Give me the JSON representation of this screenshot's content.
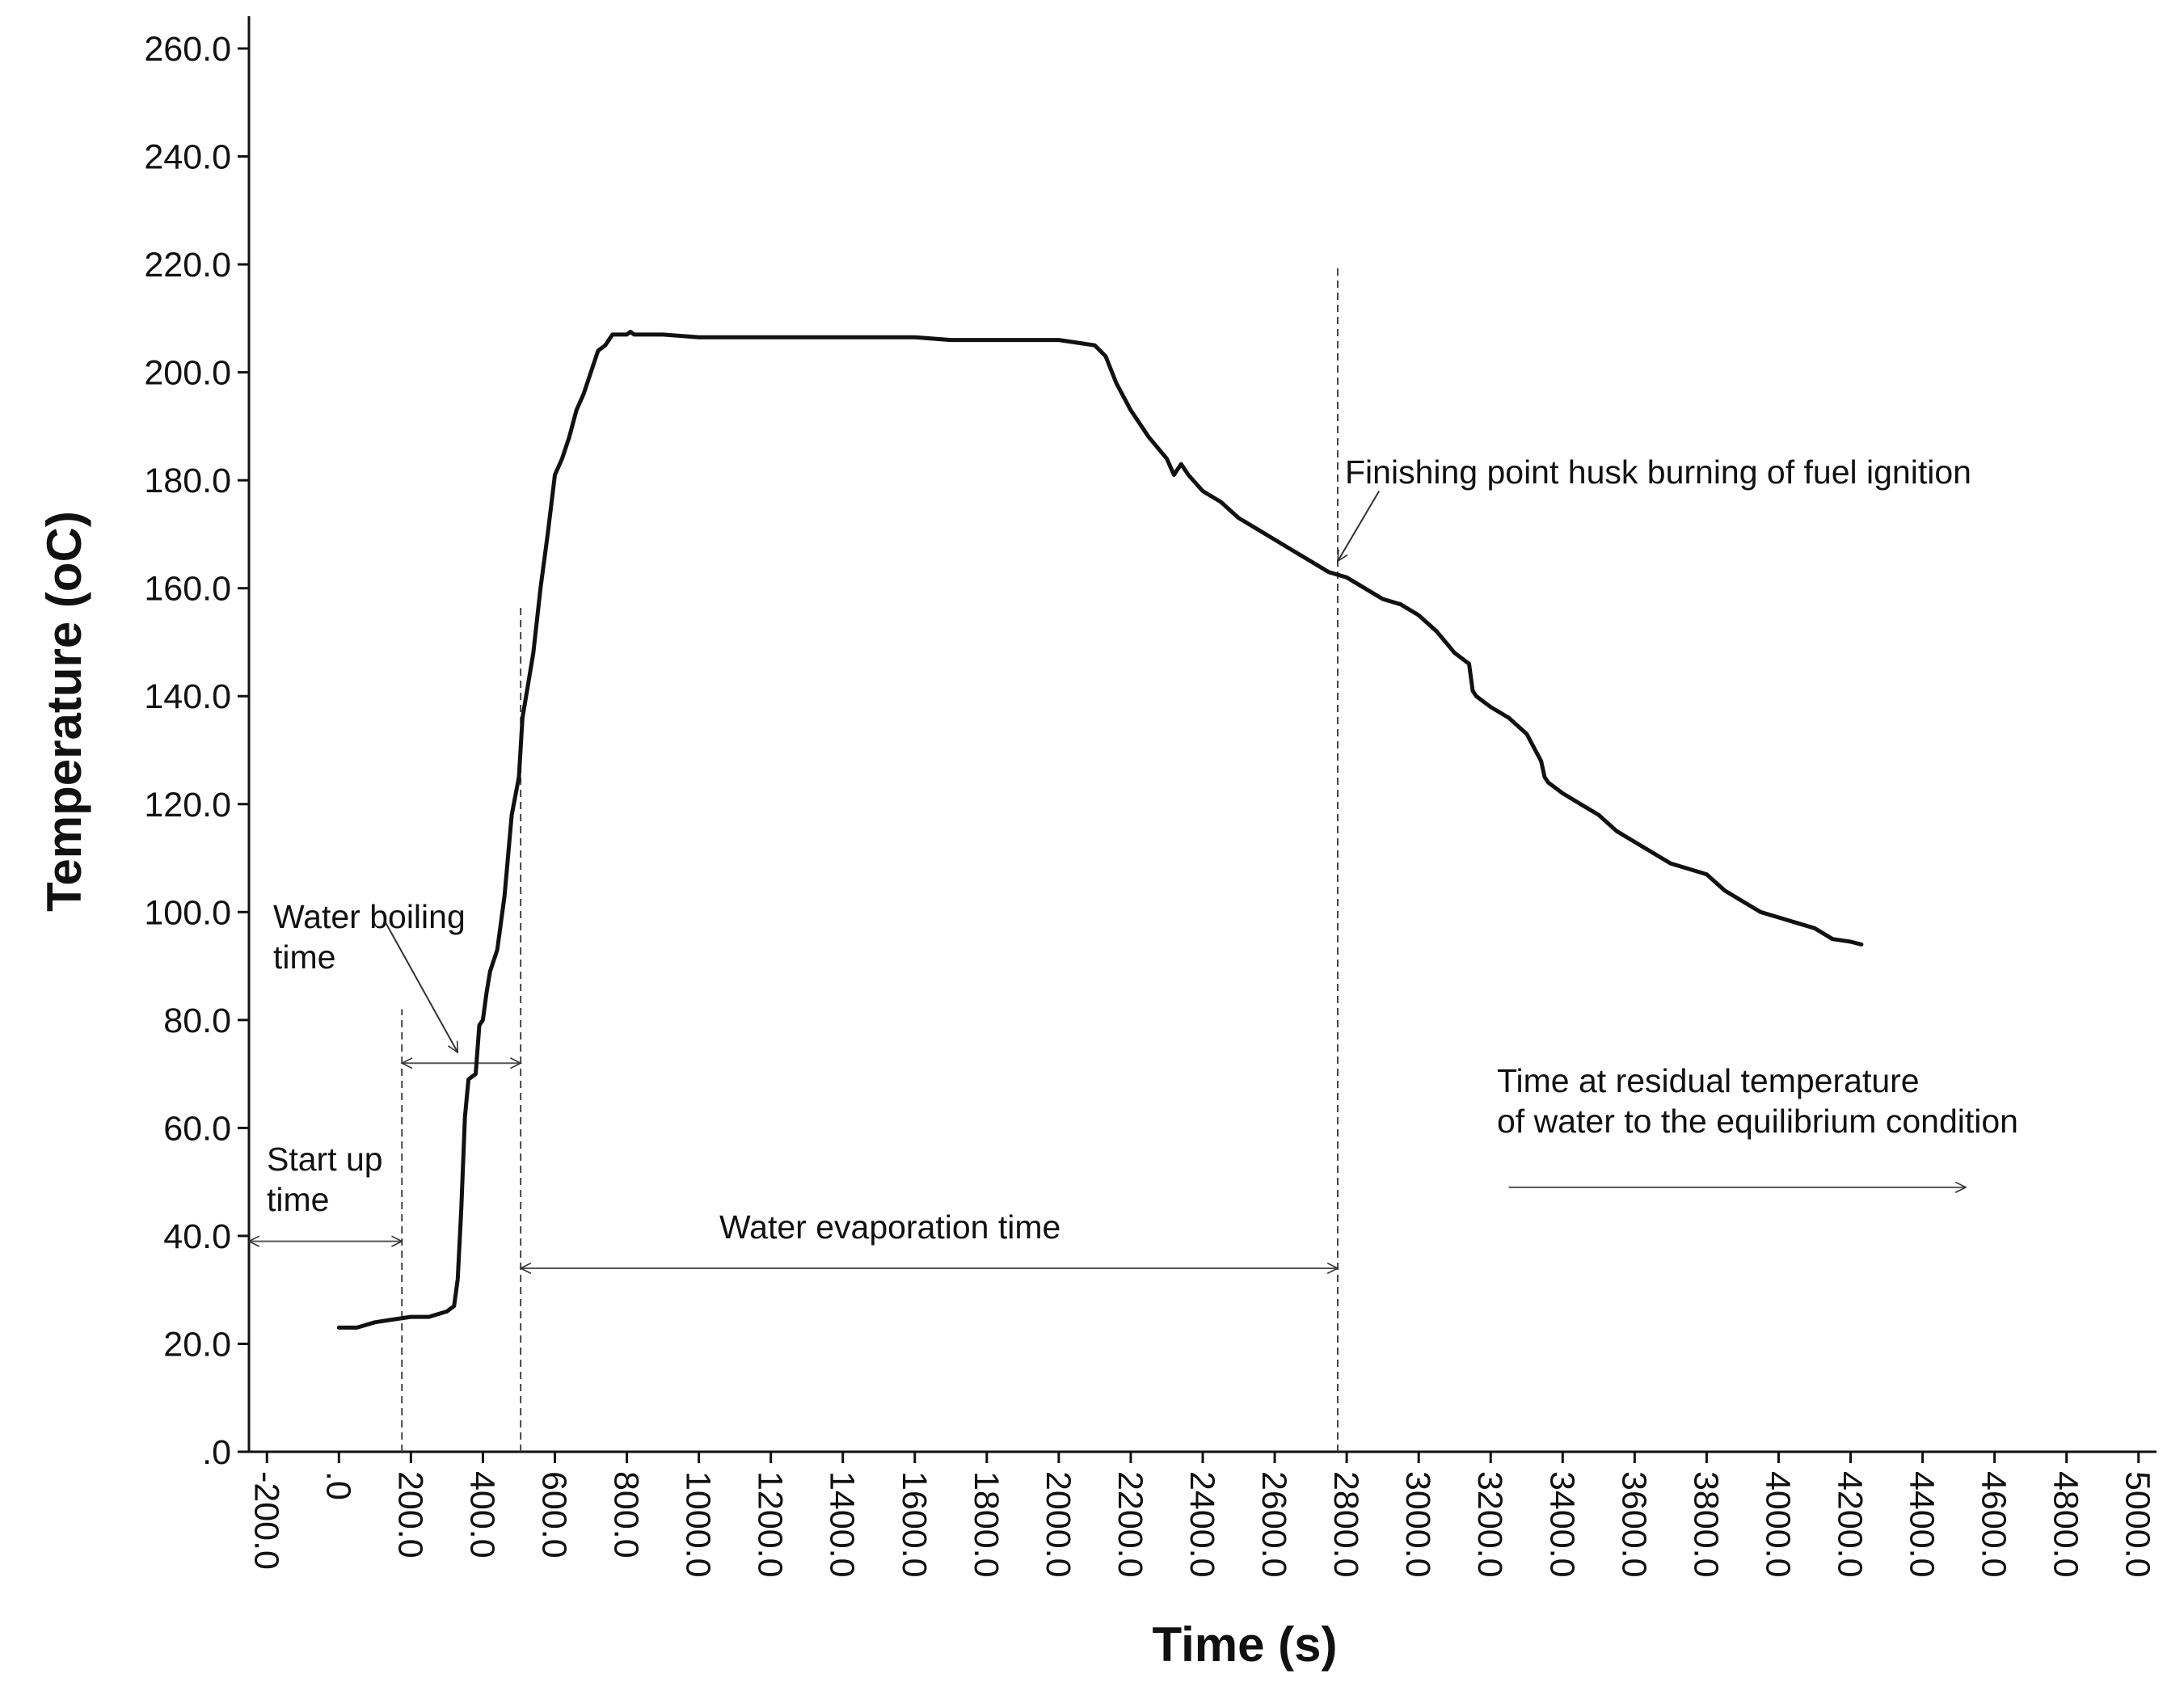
{
  "chart_data": {
    "type": "line",
    "title": "",
    "xlabel": "Time (s)",
    "ylabel": "Temperature (oC)",
    "xlim": [
      -250,
      5050
    ],
    "ylim": [
      0,
      260
    ],
    "x_ticks": [
      -200,
      0,
      200,
      400,
      600,
      800,
      1000,
      1200,
      1400,
      1600,
      1800,
      2000,
      2200,
      2400,
      2600,
      2800,
      3000,
      3200,
      3400,
      3600,
      3800,
      4000,
      4200,
      4400,
      4600,
      4800,
      5000
    ],
    "x_tick_labels": [
      "-200.0",
      ".0",
      "200.0",
      "400.0",
      "600.0",
      "800.0",
      "1000.0",
      "1200.0",
      "1400.0",
      "1600.0",
      "1800.0",
      "2000.0",
      "2200.0",
      "2400.0",
      "2600.0",
      "2800.0",
      "3000.0",
      "3200.0",
      "3400.0",
      "3600.0",
      "3800.0",
      "4000.0",
      "4200.0",
      "4400.0",
      "4600.0",
      "4800.0",
      "5000.0"
    ],
    "y_ticks": [
      0,
      20,
      40,
      60,
      80,
      100,
      120,
      140,
      160,
      180,
      200,
      220,
      240,
      260
    ],
    "y_tick_labels": [
      ".0",
      "20.0",
      "40.0",
      "60.0",
      "80.0",
      "100.0",
      "120.0",
      "140.0",
      "160.0",
      "180.0",
      "200.0",
      "220.0",
      "240.0",
      "260.0"
    ],
    "grid": false,
    "series": [
      {
        "color": "#111111",
        "x": [
          0,
          50,
          100,
          150,
          200,
          250,
          300,
          320,
          330,
          340,
          350,
          360,
          380,
          390,
          400,
          410,
          420,
          440,
          460,
          480,
          500,
          510,
          520,
          540,
          560,
          580,
          600,
          620,
          640,
          660,
          680,
          700,
          720,
          740,
          760,
          780,
          800,
          810,
          820,
          840,
          860,
          880,
          900,
          1000,
          1100,
          1200,
          1300,
          1400,
          1500,
          1600,
          1700,
          1800,
          1900,
          2000,
          2050,
          2100,
          2130,
          2160,
          2200,
          2250,
          2300,
          2320,
          2330,
          2340,
          2360,
          2400,
          2450,
          2500,
          2550,
          2600,
          2650,
          2700,
          2750,
          2800,
          2850,
          2900,
          2950,
          3000,
          3050,
          3100,
          3140,
          3150,
          3160,
          3200,
          3250,
          3300,
          3340,
          3350,
          3360,
          3400,
          3450,
          3500,
          3550,
          3600,
          3650,
          3700,
          3750,
          3800,
          3850,
          3900,
          3950,
          4000,
          4050,
          4100,
          4150,
          4200,
          4230
        ],
        "y": [
          23,
          23,
          24,
          24.5,
          25,
          25,
          26,
          27,
          32,
          45,
          62,
          69,
          70,
          79,
          80,
          85,
          89,
          93,
          103,
          118,
          125,
          136,
          140,
          148,
          160,
          170,
          181,
          184,
          188,
          193,
          196,
          200,
          204,
          205,
          207,
          207,
          207,
          207.5,
          207,
          207,
          207,
          207,
          207,
          206.5,
          206.5,
          206.5,
          206.5,
          206.5,
          206.5,
          206.5,
          206,
          206,
          206,
          206,
          205.5,
          205,
          203,
          198,
          193,
          188,
          184,
          181,
          182,
          183,
          181,
          178,
          176,
          173,
          171,
          169,
          167,
          165,
          163,
          162,
          160,
          158,
          157,
          155,
          152,
          148,
          146,
          141,
          140,
          138,
          136,
          133,
          128,
          125,
          124,
          122,
          120,
          118,
          115,
          113,
          111,
          109,
          108,
          107,
          104,
          102,
          100,
          99,
          98,
          97,
          95,
          94.5,
          94
        ]
      }
    ],
    "reference_lines": [
      {
        "x": 175,
        "y1": 0,
        "y2": 82
      },
      {
        "x": 505,
        "y1": 0,
        "y2": 157
      },
      {
        "x": 2775,
        "y1": 0,
        "y2": 220
      }
    ],
    "annotations": {
      "start_up": {
        "lines": [
          "Start up",
          "time"
        ],
        "arrow": {
          "x1": -250,
          "x2": 175,
          "y": 39
        }
      },
      "water_boiling": {
        "lines": [
          "Water boiling",
          "time"
        ],
        "arrow": {
          "x1": 175,
          "x2": 505,
          "y": 72
        },
        "pointer": {
          "x1": 130,
          "y1": 98,
          "x2": 330,
          "y2": 74
        }
      },
      "water_evaporation": {
        "lines": [
          "Water evaporation time"
        ],
        "arrow": {
          "x1": 505,
          "x2": 2775,
          "y": 34
        }
      },
      "finishing_point": {
        "lines": [
          "Finishing point husk burning of fuel ignition"
        ],
        "pointer": {
          "x1": 2890,
          "y1": 178,
          "x2": 2775,
          "y2": 165
        }
      },
      "residual": {
        "lines": [
          "Time at residual temperature",
          "of water to the equilibrium condition"
        ],
        "arrow": {
          "x1": 3250,
          "x2": 4520,
          "y": 49
        }
      }
    }
  }
}
